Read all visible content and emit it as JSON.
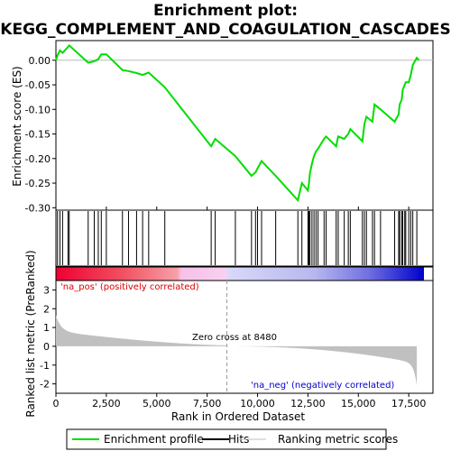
{
  "chart_data": {
    "type": "line",
    "title_line1": "Enrichment plot:",
    "title_line2": "KEGG_COMPLEMENT_AND_COAGULATION_CASCADES",
    "xlabel": "Rank in Ordered Dataset",
    "ylabel_top": "Enrichment score (ES)",
    "ylabel_bottom": "Ranked list metric (PreRanked)",
    "xlim": [
      0,
      18700
    ],
    "x_ticks": [
      0,
      2500,
      5000,
      7500,
      10000,
      12500,
      15000,
      17500
    ],
    "x_tick_labels": [
      "0",
      "2,500",
      "5,000",
      "7,500",
      "10,000",
      "12,500",
      "15,000",
      "17,500"
    ],
    "es_ylim": [
      -0.305,
      0.04
    ],
    "es_ticks": [
      0.0,
      -0.05,
      -0.1,
      -0.15,
      -0.2,
      -0.25,
      -0.3
    ],
    "es_tick_labels": [
      "0.00",
      "-0.05",
      "-0.10",
      "-0.15",
      "-0.20",
      "-0.25",
      "-0.30"
    ],
    "metric_ylim": [
      -2.5,
      3.5
    ],
    "metric_ticks": [
      3,
      2,
      1,
      0,
      -1,
      -2
    ],
    "metric_tick_labels": [
      "3",
      "2",
      "1",
      "0",
      "-1",
      "-2"
    ],
    "zero_cross_rank": 8480,
    "zero_cross_label": "Zero cross at 8480",
    "pos_label": "'na_pos' (positively correlated)",
    "neg_label": "'na_neg' (negatively correlated)",
    "legend": [
      "Enrichment profile",
      "Hits",
      "Ranking metric scores"
    ],
    "colors": {
      "es_line": "#00dd00",
      "hits": "#000000",
      "metric_fill": "#c0c0c0",
      "pos_text": "#dd0000",
      "neg_text": "#0000cc",
      "zero_line": "#999999"
    },
    "total_genes": 17900,
    "hits": [
      80,
      200,
      330,
      600,
      660,
      1600,
      1900,
      2100,
      2250,
      2500,
      3300,
      3600,
      4000,
      4300,
      4600,
      5400,
      7700,
      7900,
      8900,
      9700,
      9900,
      10000,
      10200,
      10900,
      12000,
      12200,
      12500,
      12550,
      12600,
      12700,
      12800,
      12900,
      13000,
      13300,
      13400,
      13900,
      14000,
      14300,
      14500,
      14600,
      15200,
      15300,
      15400,
      15700,
      15800,
      16100,
      16800,
      17000,
      17050,
      17150,
      17200,
      17300,
      17350,
      17500,
      17600,
      17700,
      17900
    ],
    "es_profile": {
      "x": [
        0,
        80,
        200,
        330,
        600,
        660,
        1600,
        1900,
        2100,
        2250,
        2500,
        3300,
        3600,
        4000,
        4300,
        4600,
        5400,
        7700,
        7900,
        8900,
        9700,
        9900,
        10000,
        10200,
        10900,
        12000,
        12200,
        12500,
        12550,
        12600,
        12700,
        12800,
        12900,
        13000,
        13300,
        13400,
        13900,
        14000,
        14300,
        14500,
        14600,
        15200,
        15300,
        15400,
        15700,
        15800,
        16100,
        16800,
        17000,
        17050,
        17150,
        17200,
        17300,
        17350,
        17500,
        17600,
        17700,
        17900,
        18000
      ],
      "y": [
        0.0,
        0.01,
        0.02,
        0.015,
        0.027,
        0.03,
        -0.005,
        -0.002,
        0.002,
        0.012,
        0.012,
        -0.02,
        -0.022,
        -0.026,
        -0.03,
        -0.025,
        -0.055,
        -0.175,
        -0.16,
        -0.195,
        -0.235,
        -0.228,
        -0.22,
        -0.205,
        -0.235,
        -0.285,
        -0.25,
        -0.265,
        -0.25,
        -0.23,
        -0.21,
        -0.195,
        -0.185,
        -0.18,
        -0.16,
        -0.155,
        -0.175,
        -0.155,
        -0.16,
        -0.15,
        -0.14,
        -0.165,
        -0.13,
        -0.115,
        -0.125,
        -0.09,
        -0.1,
        -0.125,
        -0.11,
        -0.09,
        -0.08,
        -0.06,
        -0.05,
        -0.045,
        -0.045,
        -0.03,
        -0.01,
        0.005,
        0.0
      ]
    }
  }
}
